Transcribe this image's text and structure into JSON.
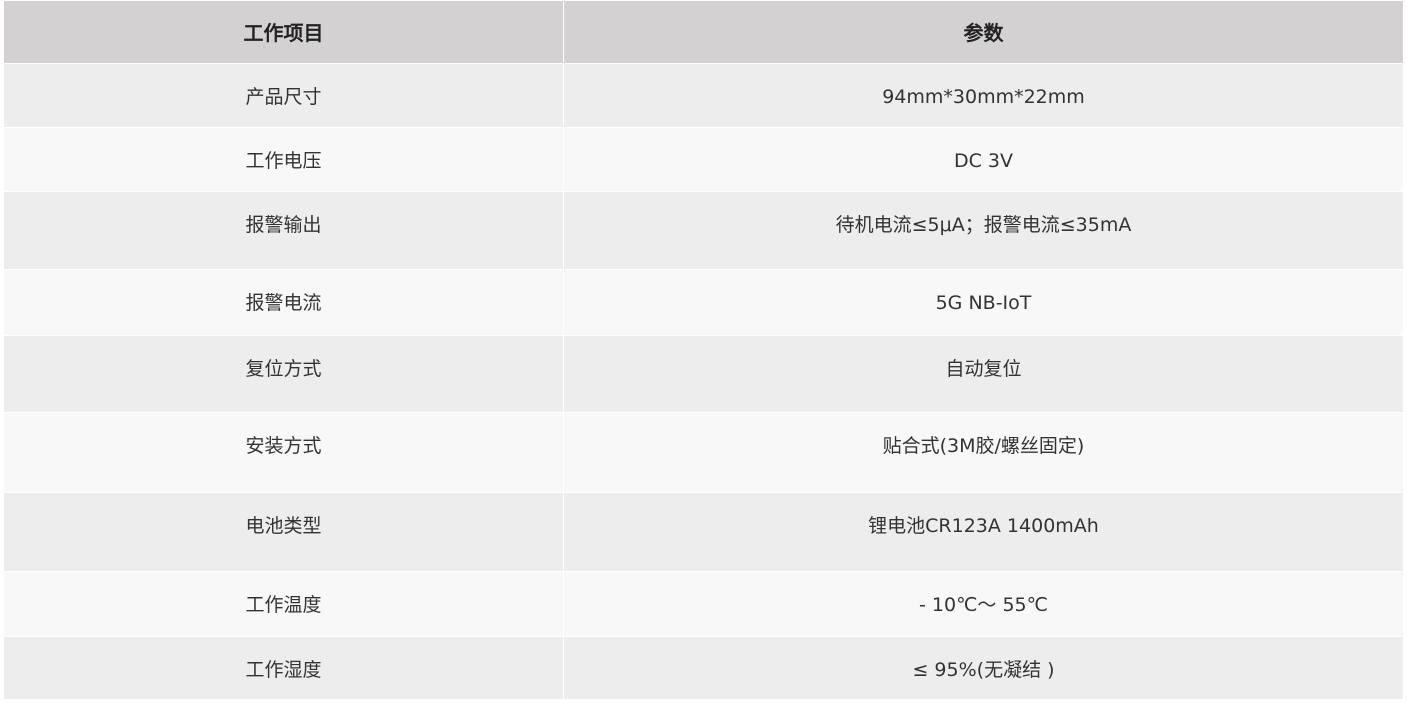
{
  "table": {
    "headers": [
      "工作项目",
      "参数"
    ],
    "rows": [
      {
        "item": "产品尺寸",
        "value": "94mm*30mm*22mm"
      },
      {
        "item": "工作电压",
        "value": "DC 3V"
      },
      {
        "item": "报警输出",
        "value": "待机电流≤5μA；报警电流≤35mA"
      },
      {
        "item": "报警电流",
        "value": "5G NB-IoT"
      },
      {
        "item": "复位方式",
        "value": "自动复位"
      },
      {
        "item": "安装方式",
        "value": "贴合式(3M胶/螺丝固定)"
      },
      {
        "item": "电池类型",
        "value": "锂电池CR123A 1400mAh"
      },
      {
        "item": "工作温度",
        "value": "- 10℃～ 55℃"
      },
      {
        "item": "工作湿度",
        "value": "≤  95%(无凝结 )"
      }
    ]
  },
  "colors": {
    "header_bg": "#d3d1d2",
    "row_odd": "#ededed",
    "row_even": "#f8f8f8"
  }
}
